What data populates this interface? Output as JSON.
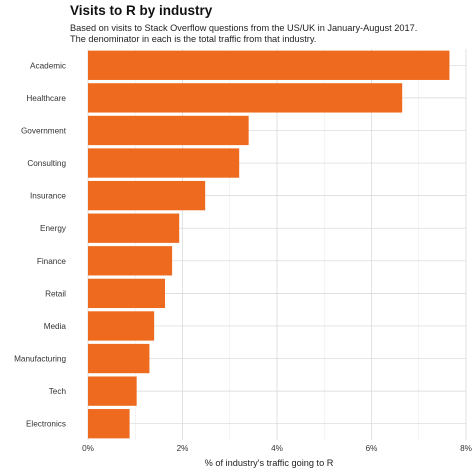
{
  "chart_data": {
    "type": "bar",
    "orientation": "horizontal",
    "title": "Visits to R by industry",
    "subtitle": [
      "Based on visits to Stack Overflow questions from the US/UK in January-August 2017.",
      "The denominator in each is the total traffic from that industry."
    ],
    "xlabel": "% of industry's traffic going to R",
    "ylabel": "",
    "categories": [
      "Academic",
      "Healthcare",
      "Government",
      "Consulting",
      "Insurance",
      "Energy",
      "Finance",
      "Retail",
      "Media",
      "Manufacturing",
      "Tech",
      "Electronics"
    ],
    "values": [
      7.65,
      6.65,
      3.4,
      3.2,
      2.48,
      1.93,
      1.78,
      1.63,
      1.4,
      1.3,
      1.03,
      0.88
    ],
    "xlim": [
      0,
      8
    ],
    "xticks": [
      0,
      2,
      4,
      6,
      8
    ],
    "xtick_labels": [
      "0%",
      "2%",
      "4%",
      "6%",
      "8%"
    ],
    "bar_color": "#EE6A1F",
    "grid": true,
    "legend": "none"
  }
}
